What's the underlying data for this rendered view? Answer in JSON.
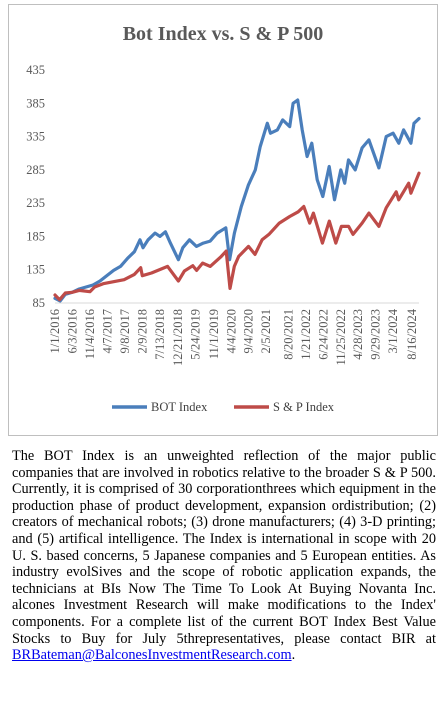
{
  "chart_data": {
    "type": "line",
    "title": "Bot Index vs. S & P 500",
    "ylim": [
      85,
      435
    ],
    "yticks": [
      85,
      135,
      185,
      235,
      285,
      335,
      385,
      435
    ],
    "xlim": [
      "2016-01-01",
      "2024-10-15"
    ],
    "xtick_labels": [
      "1/1/2016",
      "6/3/2016",
      "11/4/2016",
      "4/7/2017",
      "9/8/2017",
      "2/9/2018",
      "7/13/2018",
      "12/21/2018",
      "5/24/2019",
      "11/1/2019",
      "4/4/2020",
      "9/4/2020",
      "2/5/2021",
      "8/20/2021",
      "1/21/2022",
      "6/24/2022",
      "11/25/2022",
      "4/28/2023",
      "9/29/2023",
      "3/1/2024",
      "8/16/2024"
    ],
    "xtick_dates": [
      "2016-01-01",
      "2016-06-03",
      "2016-11-04",
      "2017-04-07",
      "2017-09-08",
      "2018-02-09",
      "2018-07-13",
      "2018-12-21",
      "2019-05-24",
      "2019-11-01",
      "2020-04-04",
      "2020-09-04",
      "2021-02-05",
      "2021-08-20",
      "2022-01-21",
      "2022-06-24",
      "2022-11-25",
      "2023-04-28",
      "2023-09-29",
      "2024-03-01",
      "2024-08-16"
    ],
    "grid": false,
    "legend_position": "bottom",
    "series": [
      {
        "name": "BOT Index",
        "color": "#4a7ebb",
        "points": [
          [
            "2016-01-01",
            92
          ],
          [
            "2016-02-15",
            88
          ],
          [
            "2016-04-01",
            98
          ],
          [
            "2016-06-01",
            101
          ],
          [
            "2016-08-01",
            106
          ],
          [
            "2016-10-01",
            109
          ],
          [
            "2016-12-01",
            112
          ],
          [
            "2017-02-01",
            118
          ],
          [
            "2017-04-01",
            126
          ],
          [
            "2017-06-01",
            134
          ],
          [
            "2017-08-01",
            140
          ],
          [
            "2017-10-01",
            152
          ],
          [
            "2017-12-01",
            162
          ],
          [
            "2018-01-20",
            180
          ],
          [
            "2018-02-15",
            168
          ],
          [
            "2018-04-01",
            180
          ],
          [
            "2018-06-01",
            190
          ],
          [
            "2018-07-15",
            185
          ],
          [
            "2018-09-01",
            192
          ],
          [
            "2018-10-15",
            175
          ],
          [
            "2018-12-24",
            150
          ],
          [
            "2019-02-01",
            168
          ],
          [
            "2019-04-01",
            180
          ],
          [
            "2019-06-01",
            170
          ],
          [
            "2019-08-01",
            175
          ],
          [
            "2019-10-01",
            178
          ],
          [
            "2019-12-01",
            190
          ],
          [
            "2020-02-15",
            198
          ],
          [
            "2020-03-20",
            150
          ],
          [
            "2020-05-01",
            190
          ],
          [
            "2020-07-01",
            230
          ],
          [
            "2020-09-01",
            262
          ],
          [
            "2020-11-01",
            285
          ],
          [
            "2020-12-15",
            320
          ],
          [
            "2021-02-15",
            355
          ],
          [
            "2021-03-15",
            340
          ],
          [
            "2021-05-15",
            345
          ],
          [
            "2021-07-01",
            360
          ],
          [
            "2021-09-01",
            350
          ],
          [
            "2021-10-01",
            385
          ],
          [
            "2021-11-10",
            390
          ],
          [
            "2021-12-20",
            345
          ],
          [
            "2022-02-01",
            305
          ],
          [
            "2022-03-15",
            325
          ],
          [
            "2022-05-01",
            270
          ],
          [
            "2022-06-20",
            245
          ],
          [
            "2022-08-15",
            290
          ],
          [
            "2022-10-01",
            240
          ],
          [
            "2022-11-25",
            285
          ],
          [
            "2022-12-30",
            265
          ],
          [
            "2023-02-01",
            300
          ],
          [
            "2023-04-01",
            285
          ],
          [
            "2023-06-01",
            318
          ],
          [
            "2023-07-31",
            330
          ],
          [
            "2023-10-27",
            288
          ],
          [
            "2023-12-31",
            335
          ],
          [
            "2024-03-01",
            340
          ],
          [
            "2024-04-20",
            325
          ],
          [
            "2024-06-01",
            345
          ],
          [
            "2024-08-05",
            325
          ],
          [
            "2024-09-01",
            355
          ],
          [
            "2024-10-15",
            362
          ]
        ]
      },
      {
        "name": "S & P Index",
        "color": "#be4b48",
        "points": [
          [
            "2016-01-01",
            97
          ],
          [
            "2016-02-11",
            90
          ],
          [
            "2016-04-01",
            100
          ],
          [
            "2016-06-01",
            101
          ],
          [
            "2016-08-01",
            104
          ],
          [
            "2016-11-04",
            102
          ],
          [
            "2016-12-15",
            109
          ],
          [
            "2017-03-01",
            114
          ],
          [
            "2017-06-01",
            117
          ],
          [
            "2017-09-01",
            120
          ],
          [
            "2017-12-01",
            128
          ],
          [
            "2018-01-26",
            138
          ],
          [
            "2018-02-09",
            126
          ],
          [
            "2018-05-01",
            130
          ],
          [
            "2018-09-20",
            140
          ],
          [
            "2018-12-24",
            118
          ],
          [
            "2019-02-15",
            133
          ],
          [
            "2019-04-30",
            141
          ],
          [
            "2019-06-03",
            134
          ],
          [
            "2019-07-26",
            145
          ],
          [
            "2019-10-01",
            140
          ],
          [
            "2019-12-31",
            154
          ],
          [
            "2020-02-19",
            163
          ],
          [
            "2020-03-23",
            107
          ],
          [
            "2020-04-30",
            140
          ],
          [
            "2020-06-08",
            155
          ],
          [
            "2020-09-02",
            170
          ],
          [
            "2020-10-30",
            158
          ],
          [
            "2020-12-31",
            180
          ],
          [
            "2021-03-01",
            188
          ],
          [
            "2021-06-01",
            205
          ],
          [
            "2021-09-01",
            215
          ],
          [
            "2021-11-15",
            222
          ],
          [
            "2022-01-03",
            230
          ],
          [
            "2022-02-24",
            205
          ],
          [
            "2022-03-29",
            220
          ],
          [
            "2022-06-16",
            175
          ],
          [
            "2022-08-16",
            208
          ],
          [
            "2022-10-12",
            175
          ],
          [
            "2022-12-01",
            200
          ],
          [
            "2023-02-02",
            200
          ],
          [
            "2023-03-13",
            188
          ],
          [
            "2023-06-01",
            205
          ],
          [
            "2023-07-31",
            220
          ],
          [
            "2023-10-27",
            200
          ],
          [
            "2023-12-31",
            228
          ],
          [
            "2024-03-28",
            252
          ],
          [
            "2024-04-19",
            240
          ],
          [
            "2024-07-16",
            265
          ],
          [
            "2024-08-05",
            250
          ],
          [
            "2024-10-15",
            280
          ]
        ]
      }
    ]
  },
  "paragraph": {
    "text": "The BOT Index is an unweighted reflection of the major public companies that are involved in robotics relative to the broader S & P 500. Currently, it is comprised of 30 corporationthrees which equipment in the production phase of product development, expansion ordistribution; (2) creators of mechanical robots; (3) drone manufacturers; (4) 3-D printing; and (5) artifical intelligence. The Index is international in scope with 20 U. S. based concerns, 5 Japanese companies and 5 European entities. As industry evolSives and the scope of robotic application expands, the technicians at BIs Now The Time To Look At Buying Novanta Inc. alcones Investment Research will make modifications to the Index' components. For a  complete list of the current BOT Index Best Value Stocks to Buy for July 5threpresentatives, please contact BIR at",
    "link": "BRBateman@BalconesInvestmentResearch.com",
    "tail": "."
  }
}
